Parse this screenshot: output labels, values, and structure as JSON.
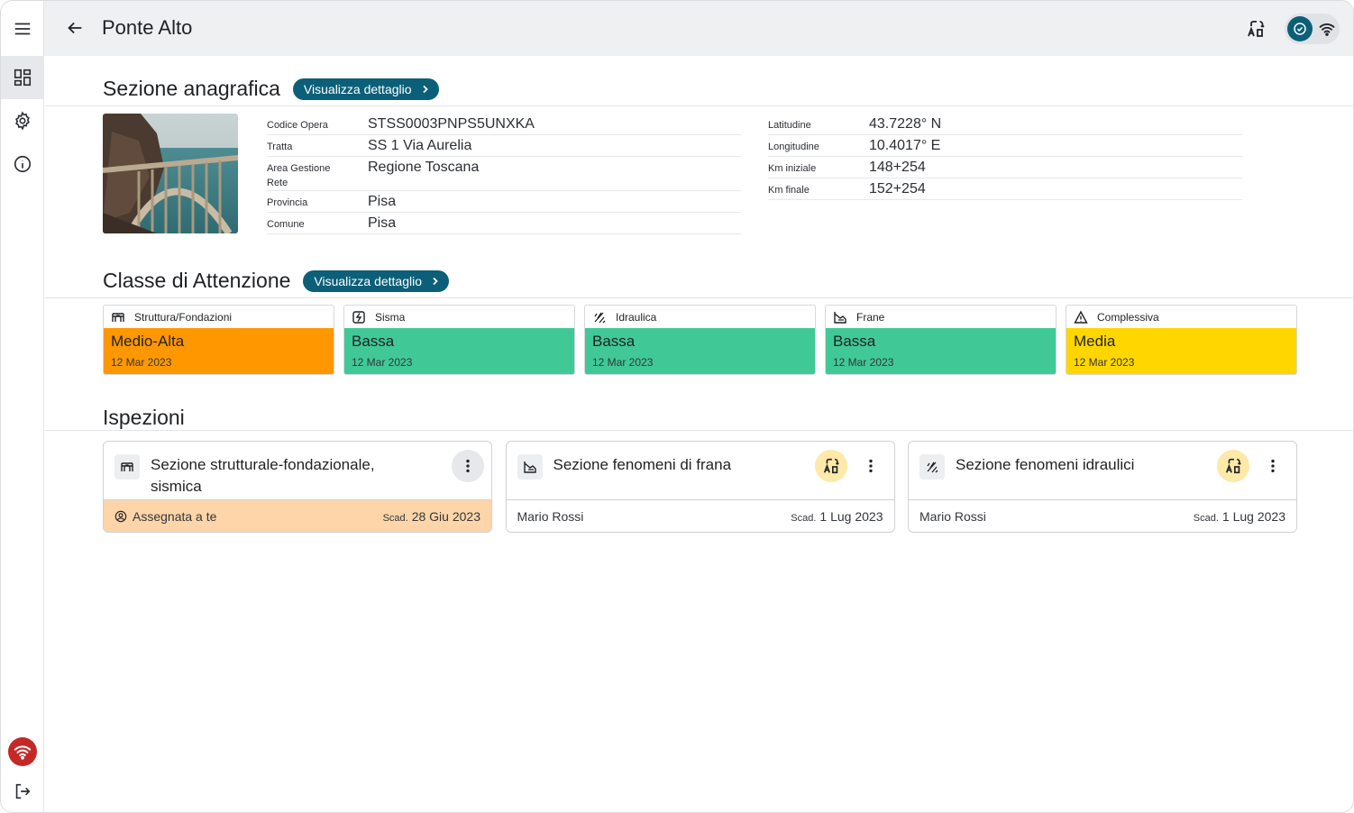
{
  "header": {
    "title": "Ponte Alto"
  },
  "sidebar": {
    "items": [
      "menu-icon",
      "dashboard-icon",
      "settings-icon",
      "info-icon"
    ],
    "bottom": [
      "wifi-alert-icon",
      "logout-icon"
    ]
  },
  "anagrafica": {
    "title": "Sezione anagrafica",
    "button_label": "Visualizza dettaglio",
    "left": [
      {
        "label": "Codice Opera",
        "value": "STSS0003PNPS5UNXKA"
      },
      {
        "label": "Tratta",
        "value": "SS 1 Via Aurelia"
      },
      {
        "label": "Area Gestione Rete",
        "value": "Regione Toscana"
      },
      {
        "label": "Provincia",
        "value": "Pisa"
      },
      {
        "label": "Comune",
        "value": "Pisa"
      }
    ],
    "right": [
      {
        "label": "Latitudine",
        "value": "43.7228° N"
      },
      {
        "label": "Longitudine",
        "value": "10.4017° E"
      },
      {
        "label": "Km iniziale",
        "value": "148+254"
      },
      {
        "label": "Km finale",
        "value": "152+254"
      }
    ]
  },
  "classe": {
    "title": "Classe di Attenzione",
    "button_label": "Visualizza dettaglio",
    "cards": [
      {
        "name": "Struttura/Fondazioni",
        "level": "Medio-Alta",
        "date": "12 Mar 2023",
        "color": "#ff9800",
        "icon": "bridge-icon"
      },
      {
        "name": "Sisma",
        "level": "Bassa",
        "date": "12 Mar 2023",
        "color": "#40c997",
        "icon": "seismic-icon"
      },
      {
        "name": "Idraulica",
        "level": "Bassa",
        "date": "12 Mar 2023",
        "color": "#40c997",
        "icon": "water-icon"
      },
      {
        "name": "Frane",
        "level": "Bassa",
        "date": "12 Mar 2023",
        "color": "#40c997",
        "icon": "landslide-icon"
      },
      {
        "name": "Complessiva",
        "level": "Media",
        "date": "12 Mar 2023",
        "color": "#ffd600",
        "icon": "warning-icon"
      }
    ]
  },
  "ispezioni": {
    "title": "Ispezioni",
    "due_prefix": "Scad.",
    "cards": [
      {
        "title": "Sezione strutturale-fondazionale, sismica",
        "owner": "Assegnata a te",
        "due": "28 Giu 2023",
        "assigned": true,
        "icon": "bridge-icon"
      },
      {
        "title_plain": "Sezione ",
        "title_bold": "fenomeni di frana",
        "owner": "Mario Rossi",
        "due": "1 Lug 2023",
        "assigned": false,
        "icon": "landslide-icon"
      },
      {
        "title_plain": "Sezione ",
        "title_bold": "fenomeni idraulici",
        "owner": "Mario Rossi",
        "due": "1 Lug 2023",
        "assigned": false,
        "icon": "water-icon"
      }
    ]
  },
  "colors": {
    "primary": "#0c5f78",
    "assigned": "#fdd5a8",
    "sync_chip": "#fde9a8",
    "alert": "#c62828"
  }
}
